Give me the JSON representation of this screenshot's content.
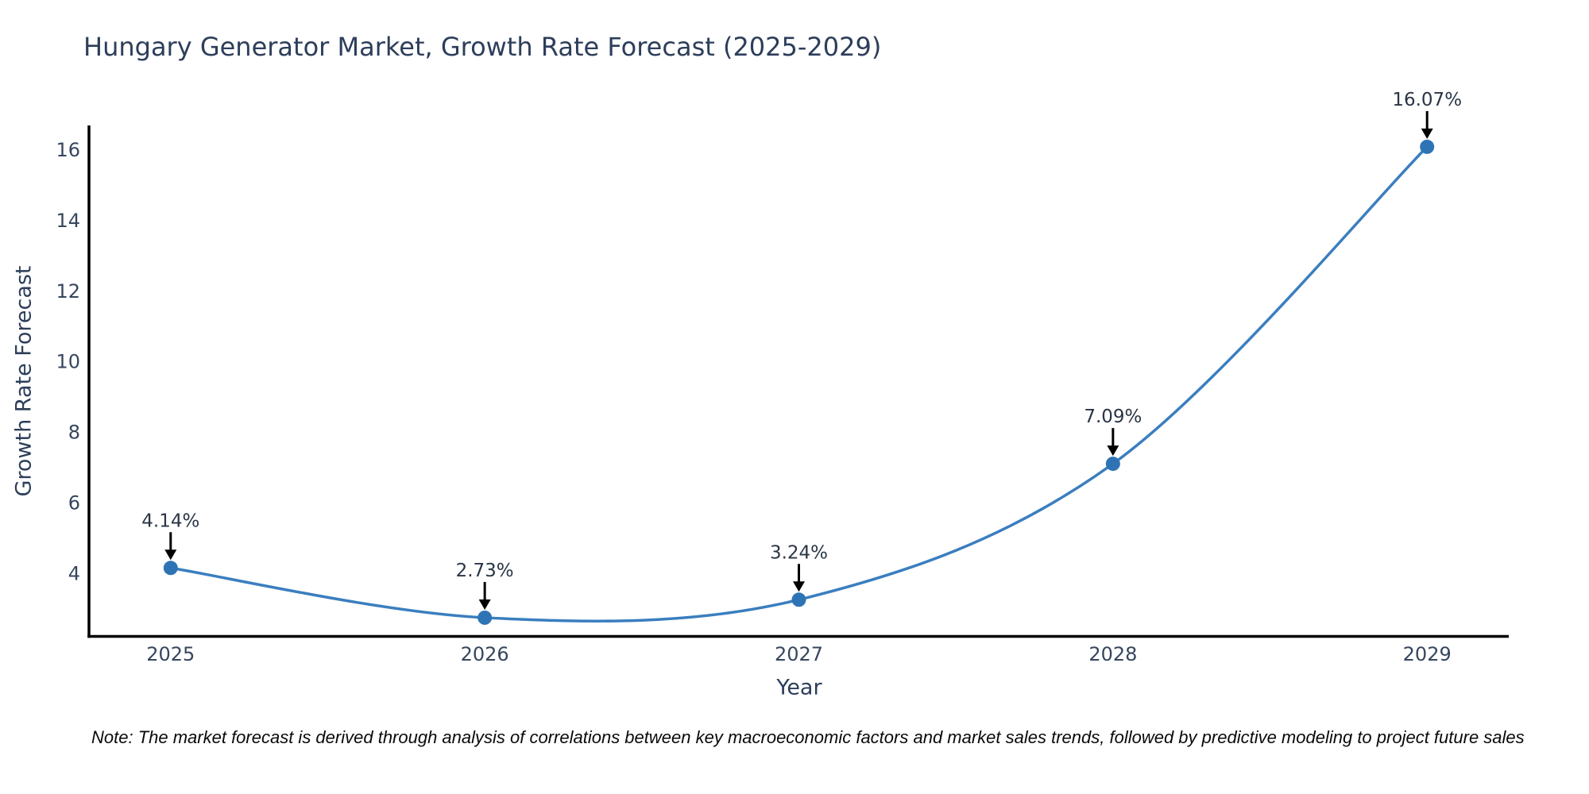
{
  "chart": {
    "title": "Hungary Generator Market, Growth Rate Forecast (2025-2029)",
    "xlabel": "Year",
    "ylabel": "Growth Rate Forecast",
    "note": "Note: The market forecast is derived through analysis of correlations between key macroeconomic factors and market sales trends, followed by predictive modeling to project future sales"
  },
  "chart_data": {
    "type": "line",
    "title": "Hungary Generator Market, Growth Rate Forecast (2025-2029)",
    "xlabel": "Year",
    "ylabel": "Growth Rate Forecast",
    "x": [
      2025,
      2026,
      2027,
      2028,
      2029
    ],
    "series": [
      {
        "name": "Growth Rate Forecast",
        "values": [
          4.14,
          2.73,
          3.24,
          7.09,
          16.07
        ]
      }
    ],
    "point_labels": [
      "4.14%",
      "2.73%",
      "3.24%",
      "7.09%",
      "16.07%"
    ],
    "xticks": [
      "2025",
      "2026",
      "2027",
      "2028",
      "2029"
    ],
    "yticks": [
      4,
      6,
      8,
      10,
      12,
      14,
      16
    ],
    "xlim": [
      2024.74,
      2029.26
    ],
    "ylim": [
      2.2,
      16.63
    ],
    "grid": false,
    "legend": false,
    "curve": "spline",
    "line_color": "#3a7ebf",
    "marker_color": "#2e74b5",
    "axis_color": "#000000",
    "annotation_arrow_color": "#000000"
  }
}
